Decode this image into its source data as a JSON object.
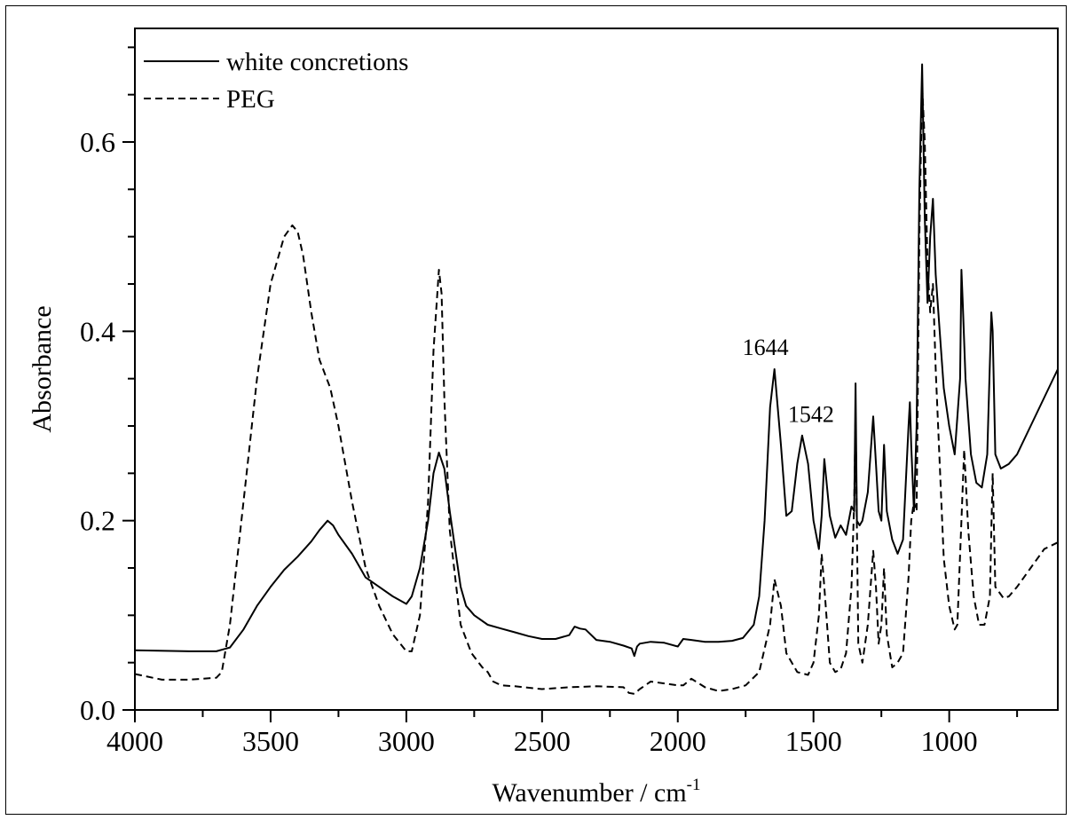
{
  "chart_data": {
    "type": "line",
    "title": "",
    "xlabel": "Wavenumber / cm",
    "xlabel_sup": "-1",
    "ylabel": "Absorbance",
    "xlim": [
      4000,
      600
    ],
    "ylim": [
      0.0,
      0.72
    ],
    "x_reversed": true,
    "x_ticks": [
      4000,
      3500,
      3000,
      2500,
      2000,
      1500,
      1000
    ],
    "x_tick_labels": [
      "4000",
      "3500",
      "3000",
      "2500",
      "2000",
      "1500",
      "1000"
    ],
    "y_ticks": [
      0.0,
      0.2,
      0.4,
      0.6
    ],
    "y_tick_labels": [
      "0.0",
      "0.2",
      "0.4",
      "0.6"
    ],
    "grid": false,
    "legend_position": "top-left",
    "annotations": [
      {
        "text": "1644",
        "x": 1644,
        "y": 0.36
      },
      {
        "text": "1542",
        "x": 1542,
        "y": 0.29
      }
    ],
    "series": [
      {
        "name": "white concretions",
        "style": "solid",
        "x": [
          4000,
          3800,
          3700,
          3650,
          3600,
          3550,
          3500,
          3450,
          3400,
          3350,
          3320,
          3290,
          3270,
          3250,
          3200,
          3150,
          3100,
          3050,
          3000,
          2980,
          2950,
          2920,
          2900,
          2880,
          2860,
          2840,
          2820,
          2800,
          2780,
          2750,
          2700,
          2650,
          2600,
          2550,
          2500,
          2450,
          2400,
          2380,
          2360,
          2340,
          2300,
          2250,
          2200,
          2170,
          2160,
          2150,
          2140,
          2100,
          2050,
          2000,
          1980,
          1950,
          1900,
          1850,
          1800,
          1760,
          1720,
          1700,
          1680,
          1660,
          1644,
          1620,
          1600,
          1580,
          1560,
          1542,
          1520,
          1500,
          1480,
          1470,
          1460,
          1440,
          1420,
          1400,
          1380,
          1360,
          1350,
          1345,
          1340,
          1330,
          1320,
          1300,
          1280,
          1270,
          1260,
          1250,
          1240,
          1230,
          1210,
          1190,
          1170,
          1150,
          1145,
          1140,
          1130,
          1120,
          1110,
          1100,
          1090,
          1080,
          1070,
          1060,
          1050,
          1040,
          1020,
          1000,
          980,
          960,
          955,
          950,
          940,
          920,
          900,
          880,
          860,
          845,
          840,
          830,
          810,
          780,
          750,
          700,
          650,
          600
        ],
        "y": [
          0.063,
          0.062,
          0.062,
          0.066,
          0.085,
          0.11,
          0.13,
          0.148,
          0.162,
          0.178,
          0.19,
          0.2,
          0.195,
          0.185,
          0.165,
          0.14,
          0.13,
          0.12,
          0.112,
          0.12,
          0.15,
          0.2,
          0.25,
          0.272,
          0.255,
          0.21,
          0.17,
          0.13,
          0.11,
          0.1,
          0.09,
          0.086,
          0.082,
          0.078,
          0.075,
          0.075,
          0.079,
          0.088,
          0.086,
          0.085,
          0.074,
          0.072,
          0.068,
          0.065,
          0.057,
          0.067,
          0.07,
          0.072,
          0.071,
          0.067,
          0.075,
          0.074,
          0.072,
          0.072,
          0.073,
          0.076,
          0.09,
          0.12,
          0.2,
          0.32,
          0.36,
          0.28,
          0.205,
          0.21,
          0.26,
          0.29,
          0.26,
          0.2,
          0.17,
          0.205,
          0.265,
          0.205,
          0.182,
          0.195,
          0.185,
          0.215,
          0.21,
          0.345,
          0.2,
          0.195,
          0.2,
          0.23,
          0.31,
          0.26,
          0.21,
          0.2,
          0.28,
          0.21,
          0.18,
          0.165,
          0.18,
          0.3,
          0.325,
          0.28,
          0.21,
          0.3,
          0.55,
          0.682,
          0.52,
          0.43,
          0.5,
          0.54,
          0.46,
          0.42,
          0.34,
          0.3,
          0.27,
          0.35,
          0.465,
          0.43,
          0.35,
          0.27,
          0.24,
          0.235,
          0.27,
          0.42,
          0.4,
          0.27,
          0.255,
          0.26,
          0.27,
          0.3,
          0.33,
          0.36
        ]
      },
      {
        "name": "PEG",
        "style": "dashed",
        "x": [
          4000,
          3900,
          3800,
          3700,
          3680,
          3650,
          3600,
          3550,
          3500,
          3450,
          3420,
          3400,
          3380,
          3350,
          3320,
          3300,
          3280,
          3250,
          3200,
          3150,
          3100,
          3050,
          3000,
          2980,
          2950,
          2920,
          2900,
          2880,
          2870,
          2860,
          2840,
          2800,
          2760,
          2720,
          2700,
          2680,
          2650,
          2600,
          2500,
          2400,
          2300,
          2200,
          2180,
          2160,
          2140,
          2100,
          2050,
          2000,
          1980,
          1950,
          1900,
          1850,
          1800,
          1750,
          1700,
          1660,
          1644,
          1620,
          1600,
          1560,
          1520,
          1500,
          1480,
          1470,
          1460,
          1440,
          1420,
          1400,
          1380,
          1360,
          1350,
          1345,
          1335,
          1320,
          1300,
          1280,
          1270,
          1260,
          1250,
          1240,
          1230,
          1210,
          1190,
          1170,
          1150,
          1140,
          1130,
          1120,
          1110,
          1100,
          1090,
          1080,
          1070,
          1060,
          1050,
          1020,
          1000,
          980,
          970,
          955,
          945,
          930,
          910,
          890,
          870,
          850,
          845,
          840,
          830,
          800,
          780,
          750,
          700,
          650,
          600
        ],
        "y": [
          0.038,
          0.032,
          0.032,
          0.034,
          0.04,
          0.09,
          0.22,
          0.35,
          0.45,
          0.5,
          0.512,
          0.505,
          0.48,
          0.42,
          0.37,
          0.355,
          0.34,
          0.3,
          0.22,
          0.15,
          0.11,
          0.08,
          0.062,
          0.062,
          0.1,
          0.22,
          0.38,
          0.465,
          0.44,
          0.33,
          0.19,
          0.09,
          0.06,
          0.045,
          0.04,
          0.03,
          0.026,
          0.025,
          0.022,
          0.024,
          0.025,
          0.024,
          0.018,
          0.017,
          0.022,
          0.03,
          0.028,
          0.026,
          0.026,
          0.033,
          0.024,
          0.02,
          0.022,
          0.026,
          0.04,
          0.09,
          0.138,
          0.11,
          0.06,
          0.04,
          0.037,
          0.05,
          0.1,
          0.165,
          0.13,
          0.05,
          0.04,
          0.043,
          0.06,
          0.13,
          0.22,
          0.31,
          0.07,
          0.05,
          0.09,
          0.168,
          0.13,
          0.07,
          0.09,
          0.15,
          0.08,
          0.045,
          0.05,
          0.06,
          0.14,
          0.2,
          0.22,
          0.21,
          0.5,
          0.66,
          0.6,
          0.47,
          0.42,
          0.45,
          0.36,
          0.16,
          0.11,
          0.085,
          0.09,
          0.2,
          0.275,
          0.19,
          0.12,
          0.09,
          0.09,
          0.12,
          0.19,
          0.25,
          0.13,
          0.118,
          0.12,
          0.13,
          0.15,
          0.17,
          0.177
        ]
      }
    ]
  }
}
